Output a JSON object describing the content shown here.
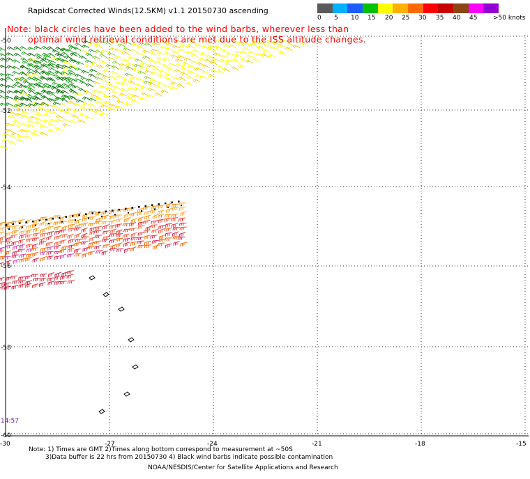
{
  "header": {
    "title": "Rapidscat Corrected Winds(12.5KM) v1.1 20150730 ascending",
    "note_line1": "Note: black circles have been added to the wind barbs, wherever less than",
    "note_line2": "optimal wind retrieval conditions are met due to the ISS altitude changes."
  },
  "colorbar": {
    "colors": [
      "#5a5a5a",
      "#00b0ff",
      "#1e5cff",
      "#00c000",
      "#ffff00",
      "#ffb000",
      "#ff6a00",
      "#ff0000",
      "#c80000",
      "#8b4513",
      "#ff00ff",
      "#9400d3"
    ],
    "labels": [
      "0",
      "5",
      "10",
      "15",
      "20",
      "25",
      "30",
      "35",
      "40",
      "45",
      ">50 knots"
    ]
  },
  "axes": {
    "lon_labels": [
      "-30",
      "-27",
      "-24",
      "-21",
      "-18",
      "-15"
    ],
    "lat_labels": [
      "-50",
      "-52",
      "-54",
      "-56",
      "-58",
      "-60"
    ]
  },
  "time_label": "14:57",
  "footer": {
    "line1": "Note: 1) Times are GMT 2)Times along bottom correspond to measurement at ~50S",
    "line2": "3)Data buffer is 22 hrs from 20150730 4) Black wind barbs indicate possible contamination",
    "line3": "NOAA/NESDIS/Center for Satellite Applications and Research"
  }
}
